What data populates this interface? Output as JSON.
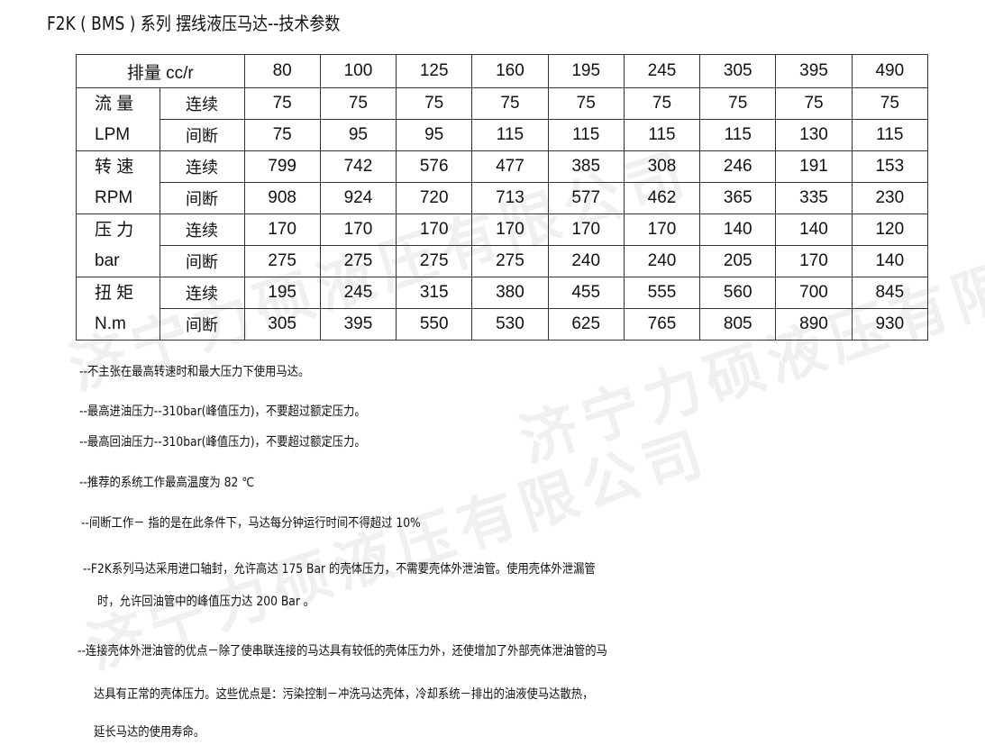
{
  "title": "F2K ( BMS ) 系列 摆线液压马达--技术参数",
  "watermark": "济宁力硕液压有限公司",
  "table": {
    "header_label": "排量 cc/r",
    "displacements": [
      "80",
      "100",
      "125",
      "160",
      "195",
      "245",
      "305",
      "395",
      "490"
    ],
    "groups": [
      {
        "name": "流 量",
        "unit": "LPM",
        "rows": [
          {
            "label": "连续",
            "values": [
              "75",
              "75",
              "75",
              "75",
              "75",
              "75",
              "75",
              "75",
              "75"
            ]
          },
          {
            "label": "间断",
            "values": [
              "75",
              "95",
              "95",
              "115",
              "115",
              "115",
              "115",
              "130",
              "115"
            ]
          }
        ]
      },
      {
        "name": "转 速",
        "unit": "RPM",
        "rows": [
          {
            "label": "连续",
            "values": [
              "799",
              "742",
              "576",
              "477",
              "385",
              "308",
              "246",
              "191",
              "153"
            ]
          },
          {
            "label": "间断",
            "values": [
              "908",
              "924",
              "720",
              "713",
              "577",
              "462",
              "365",
              "335",
              "230"
            ]
          }
        ]
      },
      {
        "name": "压 力",
        "unit": "bar",
        "rows": [
          {
            "label": "连续",
            "values": [
              "170",
              "170",
              "170",
              "170",
              "170",
              "170",
              "140",
              "140",
              "120"
            ]
          },
          {
            "label": "间断",
            "values": [
              "275",
              "275",
              "275",
              "275",
              "240",
              "240",
              "205",
              "170",
              "140"
            ]
          }
        ]
      },
      {
        "name": "扭 矩",
        "unit": "N.m",
        "rows": [
          {
            "label": "连续",
            "values": [
              "195",
              "245",
              "315",
              "380",
              "455",
              "555",
              "560",
              "700",
              "845"
            ]
          },
          {
            "label": "间断",
            "values": [
              "305",
              "395",
              "550",
              "530",
              "625",
              "765",
              "805",
              "890",
              "930"
            ]
          }
        ]
      }
    ]
  },
  "notes": [
    "--不主张在最高转速时和最大压力下使用马达。",
    "--最高进油压力--310bar(峰值压力)，不要超过额定压力。",
    "--最高回油压力--310bar(峰值压力)，不要超过额定压力。",
    "--推荐的系统工作最高温度为 82 ℃",
    "--间断工作－ 指的是在此条件下，马达每分钟运行时间不得超过 10%",
    "--F2K系列马达采用进口轴封，允许高达 175 Bar 的壳体压力，不需要壳体外泄油管。使用壳体外泄漏管",
    "时，允许回油管中的峰值压力达 200 Bar 。",
    "--连接壳体外泄油管的优点－除了使串联连接的马达具有较低的壳体压力外，还使增加了外部壳体泄油管的马",
    "达具有正常的壳体压力。这些优点是：污染控制－冲洗马达壳体，冷却系统－排出的油液使马达散热，",
    "延长马达的使用寿命。"
  ]
}
